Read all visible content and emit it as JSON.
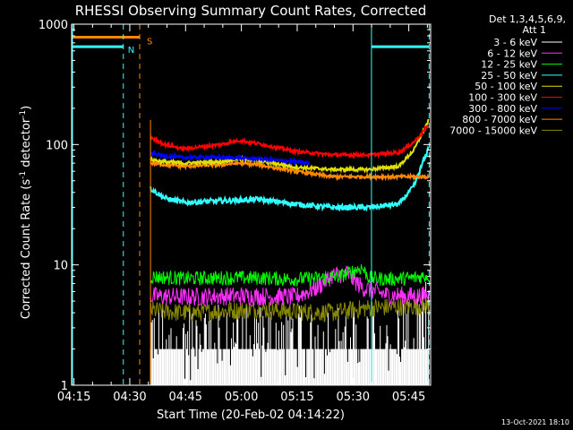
{
  "chart_data": {
    "type": "line",
    "title": "RHESSI Observing Summary Count Rates, Corrected",
    "xlabel": "Start Time (20-Feb-02 04:14:22)",
    "ylabel": "Corrected Count Rate (s⁻¹ detector⁻¹)",
    "ylabel_main": "Corrected Count Rate (s",
    "ylabel_sup1": "-1",
    "ylabel_mid": " detector",
    "ylabel_sup2": "-1",
    "ylabel_end": ")",
    "y_scale": "log",
    "ylim": [
      1,
      1000
    ],
    "xlim_minutes": [
      0,
      96.5
    ],
    "x_ticks": [
      {
        "label": "04:15",
        "min": 0.63
      },
      {
        "label": "04:30",
        "min": 15.63
      },
      {
        "label": "04:45",
        "min": 30.63
      },
      {
        "label": "05:00",
        "min": 45.63
      },
      {
        "label": "05:15",
        "min": 60.63
      },
      {
        "label": "05:30",
        "min": 75.63
      },
      {
        "label": "05:45",
        "min": 90.63
      }
    ],
    "y_ticks": [
      {
        "label": "1",
        "value": 1
      },
      {
        "label": "10",
        "value": 10
      },
      {
        "label": "100",
        "value": 100
      },
      {
        "label": "1000",
        "value": 1000
      }
    ],
    "legend": {
      "header1": "Det 1,3,4,5,6,9,",
      "header2": "Att 1",
      "placement": "right",
      "entries": [
        {
          "label": "3 - 6 keV",
          "color": "#ffffff"
        },
        {
          "label": "6 - 12 keV",
          "color": "#ff30ff"
        },
        {
          "label": "12 - 25 keV",
          "color": "#00ff00"
        },
        {
          "label": "25 - 50 keV",
          "color": "#30ffff"
        },
        {
          "label": "50 - 100 keV",
          "color": "#e0e000"
        },
        {
          "label": "100 - 300 keV",
          "color": "#ff0000"
        },
        {
          "label": "300 - 800 keV",
          "color": "#0000ff"
        },
        {
          "label": "800 - 7000 keV",
          "color": "#ff8800"
        },
        {
          "label": "7000 - 15000 keV",
          "color": "#888800"
        }
      ]
    },
    "data_window_minutes": [
      21.2,
      96.1
    ],
    "series": [
      {
        "name": "3 - 6 keV",
        "color": "#ffffff",
        "x": [
          21.2,
          35,
          45,
          55,
          65,
          75,
          85,
          92,
          96
        ],
        "y": [
          1.5,
          1.5,
          1.6,
          1.5,
          1.5,
          1.5,
          1.5,
          1.8,
          2.5
        ]
      },
      {
        "name": "6 - 12 keV",
        "color": "#ff30ff",
        "x": [
          21.2,
          30,
          40,
          50,
          60,
          66,
          70,
          74,
          78,
          85,
          92,
          96
        ],
        "y": [
          5.5,
          5.4,
          5.5,
          5.5,
          5.4,
          6.5,
          8.2,
          8.5,
          6.5,
          5.6,
          5.5,
          5.6
        ]
      },
      {
        "name": "12 - 25 keV",
        "color": "#00ff00",
        "x": [
          21.2,
          30,
          40,
          50,
          60,
          68,
          72,
          78,
          80,
          85,
          92,
          96
        ],
        "y": [
          8.0,
          7.7,
          7.8,
          7.8,
          7.6,
          7.8,
          8.0,
          9.5,
          7.8,
          7.6,
          7.8,
          8.2
        ]
      },
      {
        "name": "25 - 50 keV",
        "color": "#30ffff",
        "x": [
          21.2,
          25,
          30,
          40,
          50,
          60,
          70,
          80,
          88,
          92,
          96
        ],
        "y": [
          43,
          36,
          33,
          34,
          35,
          32,
          30,
          30,
          32,
          45,
          95
        ]
      },
      {
        "name": "50 - 100 keV",
        "color": "#e0e000",
        "x": [
          21.2,
          25,
          30,
          40,
          45,
          50,
          60,
          70,
          80,
          88,
          92,
          96
        ],
        "y": [
          75,
          72,
          70,
          72,
          76,
          74,
          65,
          62,
          62,
          66,
          90,
          160
        ]
      },
      {
        "name": "100 - 300 keV",
        "color": "#ff0000",
        "x": [
          21.2,
          25,
          30,
          40,
          45,
          50,
          60,
          70,
          80,
          88,
          92,
          96
        ],
        "y": [
          115,
          100,
          92,
          100,
          108,
          102,
          88,
          82,
          82,
          86,
          105,
          145
        ]
      },
      {
        "name": "300 - 800 keV",
        "color": "#0000ff",
        "x": [
          21.2,
          25,
          30,
          40,
          50,
          60,
          64
        ],
        "y": [
          85,
          80,
          78,
          78,
          76,
          72,
          70
        ]
      },
      {
        "name": "800 - 7000 keV",
        "color": "#ff8800",
        "x": [
          21.2,
          25,
          30,
          40,
          45,
          50,
          60,
          70,
          80,
          88,
          92,
          96
        ],
        "y": [
          70,
          68,
          66,
          68,
          70,
          68,
          60,
          54,
          54,
          54,
          54,
          54
        ]
      },
      {
        "name": "7000 - 15000 keV",
        "color": "#888800",
        "x": [
          21.2,
          30,
          40,
          50,
          60,
          70,
          80,
          90,
          96
        ],
        "y": [
          4.2,
          4.0,
          4.1,
          4.3,
          4.1,
          4.0,
          4.4,
          4.5,
          4.6
        ]
      }
    ],
    "annotations": {
      "saa_label": "S",
      "night_label": "N",
      "saa_color": "#ff8800",
      "night_color": "#30ffff",
      "saa_interval_minutes": [
        0,
        18.3
      ],
      "saa_level": 780,
      "night_interval_minutes": [
        0,
        13.9
      ],
      "night_level": 650,
      "night_interval2_minutes": [
        80.6,
        96.1
      ],
      "vlines_dashed_cyan_minutes": [
        13.9,
        96.1
      ],
      "vlines_dashed_orange_minutes": [
        18.3
      ],
      "vlines_solid_cyan_minutes": [
        0,
        80.6
      ],
      "vline_solid_orange_minutes": [
        21.2
      ]
    },
    "grid": false
  },
  "footer": {
    "date_stamp": "13-Oct-2021 18:10"
  }
}
